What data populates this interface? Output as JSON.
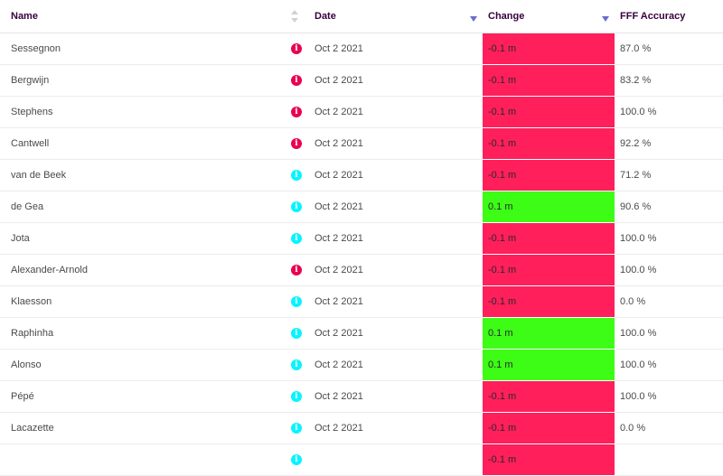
{
  "table": {
    "headers": {
      "name": "Name",
      "date": "Date",
      "change": "Change",
      "accuracy": "FFF Accuracy"
    },
    "colors": {
      "negative_change": "#ff1f5b",
      "positive_change": "#3dfc16",
      "info_red": "#e90052",
      "info_cyan": "#04f5ff",
      "sort_arrow": "#6c6ccc"
    },
    "rows": [
      {
        "name": "Sessegnon",
        "info_color": "red",
        "date": "Oct 2 2021",
        "change": "-0.1 m",
        "accuracy": "87.0 %"
      },
      {
        "name": "Bergwijn",
        "info_color": "red",
        "date": "Oct 2 2021",
        "change": "-0.1 m",
        "accuracy": "83.2 %"
      },
      {
        "name": "Stephens",
        "info_color": "red",
        "date": "Oct 2 2021",
        "change": "-0.1 m",
        "accuracy": "100.0 %"
      },
      {
        "name": "Cantwell",
        "info_color": "red",
        "date": "Oct 2 2021",
        "change": "-0.1 m",
        "accuracy": "92.2 %"
      },
      {
        "name": "van de Beek",
        "info_color": "cyan",
        "date": "Oct 2 2021",
        "change": "-0.1 m",
        "accuracy": "71.2 %"
      },
      {
        "name": "de Gea",
        "info_color": "cyan",
        "date": "Oct 2 2021",
        "change": "0.1 m",
        "accuracy": "90.6 %"
      },
      {
        "name": "Jota",
        "info_color": "cyan",
        "date": "Oct 2 2021",
        "change": "-0.1 m",
        "accuracy": "100.0 %"
      },
      {
        "name": "Alexander-Arnold",
        "info_color": "red",
        "date": "Oct 2 2021",
        "change": "-0.1 m",
        "accuracy": "100.0 %"
      },
      {
        "name": "Klaesson",
        "info_color": "cyan",
        "date": "Oct 2 2021",
        "change": "-0.1 m",
        "accuracy": "0.0 %"
      },
      {
        "name": "Raphinha",
        "info_color": "cyan",
        "date": "Oct 2 2021",
        "change": "0.1 m",
        "accuracy": "100.0 %"
      },
      {
        "name": "Alonso",
        "info_color": "cyan",
        "date": "Oct 2 2021",
        "change": "0.1 m",
        "accuracy": "100.0 %"
      },
      {
        "name": "Pépé",
        "info_color": "cyan",
        "date": "Oct 2 2021",
        "change": "-0.1 m",
        "accuracy": "100.0 %"
      },
      {
        "name": "Lacazette",
        "info_color": "cyan",
        "date": "Oct 2 2021",
        "change": "-0.1 m",
        "accuracy": "0.0 %"
      },
      {
        "name": "",
        "info_color": "cyan",
        "date": "",
        "change": "-0.1 m",
        "accuracy": ""
      }
    ]
  }
}
